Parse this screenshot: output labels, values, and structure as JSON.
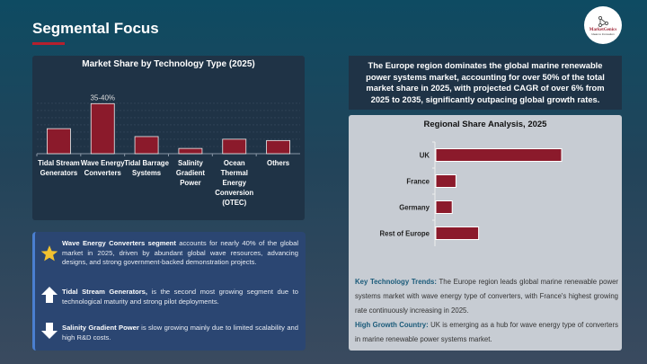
{
  "header": {
    "title": "Segmental Focus",
    "logo_text": "MarketGenics",
    "logo_tagline": "Ideas to Innovation"
  },
  "tech_chart": {
    "title": "Market Share by Technology Type (2025)"
  },
  "highlights": [
    {
      "icon": "star-icon",
      "bold": "Wave Energy Converters segment",
      "text": " accounts for nearly 40% of the global market in 2025, driven by abundant global wave resources, advancing designs, and strong government-backed demonstration projects."
    },
    {
      "icon": "arrow-up-icon",
      "bold": "Tidal Stream Generators,",
      "text": " is the second most growing segment due to technological maturity and strong pilot deployments."
    },
    {
      "icon": "arrow-down-icon",
      "bold": "Salinity Gradient Power",
      "text": " is slow growing mainly due to limited scalability and high R&D costs."
    }
  ],
  "summary": "The Europe region dominates the global marine renewable power systems market, accounting for over 50% of the total market share in 2025, with projected CAGR of over 6% from 2025 to 2035, significantly outpacing global growth rates.",
  "regional": {
    "title": "Regional Share Analysis, 2025"
  },
  "trends": {
    "label1": "Key Technology Trends:",
    "text1": " The Europe region leads global marine renewable power systems market with wave energy type of converters, with France's highest growing rate continuously increasing in 2025.",
    "label2": "High Growth Country:",
    "text2": " UK is emerging as a hub for wave energy type of converters in marine renewable power systems market."
  },
  "colors": {
    "bar": "#8b1a2b",
    "accent": "#b5202e",
    "star": "#f2c230"
  },
  "chart_data": [
    {
      "type": "bar",
      "title": "Market Share by Technology Type (2025)",
      "categories": [
        "Tidal Stream Generators",
        "Wave Energy Converters",
        "Tidal Barrage Systems",
        "Salinity Gradient Power",
        "Ocean Thermal Energy Conversion (OTEC)",
        "Others"
      ],
      "values": [
        19,
        38,
        13,
        4,
        11,
        10
      ],
      "data_labels": [
        "",
        "35-40%",
        "",
        "",
        "",
        ""
      ],
      "ylim": [
        0,
        45
      ],
      "grid": true
    },
    {
      "type": "bar",
      "orientation": "horizontal",
      "title": "Regional Share Analysis, 2025",
      "categories": [
        "UK",
        "France",
        "Germany",
        "Rest of Europe"
      ],
      "values": [
        50,
        8,
        6.5,
        17
      ],
      "xlim": [
        0,
        100
      ],
      "grid": false
    }
  ]
}
